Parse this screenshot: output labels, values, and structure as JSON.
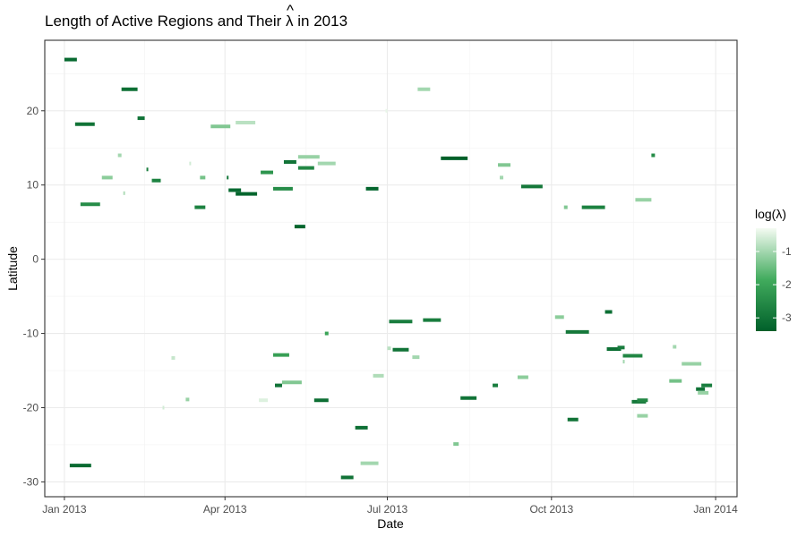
{
  "chart_data": {
    "type": "segment",
    "title_parts": [
      "Length of Active Regions and Their ",
      "λ",
      " in 2013"
    ],
    "title_hat": "^",
    "xlabel": "Date",
    "ylabel": "Latitude",
    "x_ticks": [
      {
        "date": "2013-01-01",
        "label": "Jan 2013"
      },
      {
        "date": "2013-04-01",
        "label": "Apr 2013"
      },
      {
        "date": "2013-07-01",
        "label": "Jul 2013"
      },
      {
        "date": "2013-10-01",
        "label": "Oct 2013"
      },
      {
        "date": "2014-01-01",
        "label": "Jan 2014"
      }
    ],
    "xlim": [
      "2012-12-21",
      "2014-01-13"
    ],
    "y_ticks": [
      -30,
      -20,
      -10,
      0,
      10,
      20
    ],
    "ylim": [
      -32.0,
      29.5
    ],
    "grid": true,
    "legend": {
      "title": "log(λ)",
      "position": "right",
      "range": [
        -3.4,
        -0.3
      ],
      "ticks": [
        -1,
        -2,
        -3
      ],
      "color_low": "#00602a",
      "color_mid": "#41ab5d",
      "color_high": "#f4fbf2"
    },
    "segments": [
      {
        "start": "2013-01-01",
        "end": "2013-01-08",
        "lat": 26.9,
        "log_lambda": -3.2
      },
      {
        "start": "2013-01-07",
        "end": "2013-01-18",
        "lat": 18.2,
        "log_lambda": -3.0
      },
      {
        "start": "2013-01-10",
        "end": "2013-01-21",
        "lat": 7.4,
        "log_lambda": -2.5
      },
      {
        "start": "2013-01-04",
        "end": "2013-01-16",
        "lat": -27.8,
        "log_lambda": -3.2
      },
      {
        "start": "2013-01-22",
        "end": "2013-01-28",
        "lat": 11.0,
        "log_lambda": -1.2
      },
      {
        "start": "2013-01-31",
        "end": "2013-02-02",
        "lat": 14.0,
        "log_lambda": -1.0
      },
      {
        "start": "2013-02-03",
        "end": "2013-02-04",
        "lat": 8.9,
        "log_lambda": -0.9
      },
      {
        "start": "2013-02-02",
        "end": "2013-02-11",
        "lat": 22.9,
        "log_lambda": -3.1
      },
      {
        "start": "2013-02-11",
        "end": "2013-02-15",
        "lat": 19.0,
        "log_lambda": -3.0
      },
      {
        "start": "2013-02-16",
        "end": "2013-02-17",
        "lat": 12.1,
        "log_lambda": -2.8
      },
      {
        "start": "2013-02-19",
        "end": "2013-02-24",
        "lat": 10.6,
        "log_lambda": -2.7
      },
      {
        "start": "2013-02-25",
        "end": "2013-02-26",
        "lat": -20.0,
        "log_lambda": -0.6
      },
      {
        "start": "2013-03-02",
        "end": "2013-03-04",
        "lat": -13.3,
        "log_lambda": -0.7
      },
      {
        "start": "2013-03-10",
        "end": "2013-03-12",
        "lat": -18.9,
        "log_lambda": -1.1
      },
      {
        "start": "2013-03-12",
        "end": "2013-03-13",
        "lat": 12.9,
        "log_lambda": -0.6
      },
      {
        "start": "2013-03-15",
        "end": "2013-03-21",
        "lat": 7.0,
        "log_lambda": -2.7
      },
      {
        "start": "2013-03-18",
        "end": "2013-03-21",
        "lat": 11.0,
        "log_lambda": -1.4
      },
      {
        "start": "2013-03-24",
        "end": "2013-04-04",
        "lat": 17.9,
        "log_lambda": -1.3
      },
      {
        "start": "2013-04-02",
        "end": "2013-04-03",
        "lat": 11.0,
        "log_lambda": -2.9
      },
      {
        "start": "2013-04-03",
        "end": "2013-04-10",
        "lat": 9.3,
        "log_lambda": -3.2
      },
      {
        "start": "2013-04-07",
        "end": "2013-04-18",
        "lat": 18.4,
        "log_lambda": -0.8
      },
      {
        "start": "2013-04-07",
        "end": "2013-04-19",
        "lat": 8.8,
        "log_lambda": -3.3
      },
      {
        "start": "2013-04-20",
        "end": "2013-04-25",
        "lat": -19.0,
        "log_lambda": -0.5
      },
      {
        "start": "2013-04-21",
        "end": "2013-04-28",
        "lat": 11.7,
        "log_lambda": -2.3
      },
      {
        "start": "2013-04-28",
        "end": "2013-05-09",
        "lat": 9.5,
        "log_lambda": -2.5
      },
      {
        "start": "2013-04-28",
        "end": "2013-05-07",
        "lat": -12.9,
        "log_lambda": -2.1
      },
      {
        "start": "2013-04-29",
        "end": "2013-05-03",
        "lat": -17.0,
        "log_lambda": -3.0
      },
      {
        "start": "2013-05-03",
        "end": "2013-05-14",
        "lat": -16.6,
        "log_lambda": -1.3
      },
      {
        "start": "2013-05-04",
        "end": "2013-05-11",
        "lat": 13.1,
        "log_lambda": -3.0
      },
      {
        "start": "2013-05-10",
        "end": "2013-05-16",
        "lat": 4.4,
        "log_lambda": -3.3
      },
      {
        "start": "2013-05-12",
        "end": "2013-05-21",
        "lat": 12.3,
        "log_lambda": -2.6
      },
      {
        "start": "2013-05-12",
        "end": "2013-05-24",
        "lat": 13.8,
        "log_lambda": -1.1
      },
      {
        "start": "2013-05-21",
        "end": "2013-05-29",
        "lat": -19.0,
        "log_lambda": -3.1
      },
      {
        "start": "2013-05-23",
        "end": "2013-06-02",
        "lat": 12.9,
        "log_lambda": -1.0
      },
      {
        "start": "2013-05-27",
        "end": "2013-05-29",
        "lat": -10.0,
        "log_lambda": -2.0
      },
      {
        "start": "2013-06-05",
        "end": "2013-06-12",
        "lat": -29.4,
        "log_lambda": -3.0
      },
      {
        "start": "2013-06-13",
        "end": "2013-06-20",
        "lat": -22.7,
        "log_lambda": -3.1
      },
      {
        "start": "2013-06-16",
        "end": "2013-06-26",
        "lat": -27.5,
        "log_lambda": -1.0
      },
      {
        "start": "2013-06-19",
        "end": "2013-06-26",
        "lat": 9.5,
        "log_lambda": -3.3
      },
      {
        "start": "2013-06-23",
        "end": "2013-06-29",
        "lat": -15.7,
        "log_lambda": -0.9
      },
      {
        "start": "2013-06-30",
        "end": "2013-07-01",
        "lat": 20.0,
        "log_lambda": -0.4
      },
      {
        "start": "2013-07-01",
        "end": "2013-07-03",
        "lat": -12.0,
        "log_lambda": -0.8
      },
      {
        "start": "2013-07-02",
        "end": "2013-07-15",
        "lat": -8.4,
        "log_lambda": -2.8
      },
      {
        "start": "2013-07-04",
        "end": "2013-07-13",
        "lat": -12.2,
        "log_lambda": -3.0
      },
      {
        "start": "2013-07-15",
        "end": "2013-07-19",
        "lat": -13.2,
        "log_lambda": -1.0
      },
      {
        "start": "2013-07-18",
        "end": "2013-07-25",
        "lat": 22.9,
        "log_lambda": -1.0
      },
      {
        "start": "2013-07-21",
        "end": "2013-07-31",
        "lat": -8.2,
        "log_lambda": -2.8
      },
      {
        "start": "2013-07-31",
        "end": "2013-08-15",
        "lat": 13.6,
        "log_lambda": -3.4
      },
      {
        "start": "2013-08-07",
        "end": "2013-08-10",
        "lat": -24.9,
        "log_lambda": -1.3
      },
      {
        "start": "2013-08-11",
        "end": "2013-08-20",
        "lat": -18.7,
        "log_lambda": -3.0
      },
      {
        "start": "2013-08-29",
        "end": "2013-09-01",
        "lat": -17.0,
        "log_lambda": -2.8
      },
      {
        "start": "2013-09-01",
        "end": "2013-09-08",
        "lat": 12.7,
        "log_lambda": -1.3
      },
      {
        "start": "2013-09-02",
        "end": "2013-09-04",
        "lat": 11.0,
        "log_lambda": -1.0
      },
      {
        "start": "2013-09-12",
        "end": "2013-09-18",
        "lat": -15.9,
        "log_lambda": -1.2
      },
      {
        "start": "2013-09-14",
        "end": "2013-09-26",
        "lat": 9.8,
        "log_lambda": -2.9
      },
      {
        "start": "2013-10-03",
        "end": "2013-10-08",
        "lat": -7.8,
        "log_lambda": -1.2
      },
      {
        "start": "2013-10-08",
        "end": "2013-10-10",
        "lat": 7.0,
        "log_lambda": -1.3
      },
      {
        "start": "2013-10-09",
        "end": "2013-10-22",
        "lat": -9.8,
        "log_lambda": -2.9
      },
      {
        "start": "2013-10-10",
        "end": "2013-10-16",
        "lat": -21.6,
        "log_lambda": -3.0
      },
      {
        "start": "2013-10-18",
        "end": "2013-10-31",
        "lat": 7.0,
        "log_lambda": -2.7
      },
      {
        "start": "2013-10-31",
        "end": "2013-11-04",
        "lat": -7.1,
        "log_lambda": -3.1
      },
      {
        "start": "2013-11-01",
        "end": "2013-11-09",
        "lat": -12.1,
        "log_lambda": -3.1
      },
      {
        "start": "2013-11-07",
        "end": "2013-11-11",
        "lat": -11.9,
        "log_lambda": -2.8
      },
      {
        "start": "2013-11-10",
        "end": "2013-11-21",
        "lat": -13.0,
        "log_lambda": -2.6
      },
      {
        "start": "2013-11-10",
        "end": "2013-11-11",
        "lat": -13.8,
        "log_lambda": -1.0
      },
      {
        "start": "2013-11-15",
        "end": "2013-11-23",
        "lat": -19.2,
        "log_lambda": -2.9
      },
      {
        "start": "2013-11-18",
        "end": "2013-11-24",
        "lat": -19.0,
        "log_lambda": -2.6
      },
      {
        "start": "2013-11-17",
        "end": "2013-11-26",
        "lat": 8.0,
        "log_lambda": -1.1
      },
      {
        "start": "2013-11-18",
        "end": "2013-11-24",
        "lat": -21.1,
        "log_lambda": -1.1
      },
      {
        "start": "2013-11-26",
        "end": "2013-11-28",
        "lat": 14.0,
        "log_lambda": -2.5
      },
      {
        "start": "2013-12-06",
        "end": "2013-12-13",
        "lat": -16.4,
        "log_lambda": -1.4
      },
      {
        "start": "2013-12-08",
        "end": "2013-12-10",
        "lat": -11.8,
        "log_lambda": -1.0
      },
      {
        "start": "2013-12-13",
        "end": "2013-12-24",
        "lat": -14.1,
        "log_lambda": -1.1
      },
      {
        "start": "2013-12-21",
        "end": "2013-12-26",
        "lat": -17.5,
        "log_lambda": -3.0
      },
      {
        "start": "2013-12-22",
        "end": "2013-12-28",
        "lat": -18.0,
        "log_lambda": -1.1
      },
      {
        "start": "2013-12-24",
        "end": "2013-12-30",
        "lat": -17.0,
        "log_lambda": -2.8
      }
    ]
  }
}
